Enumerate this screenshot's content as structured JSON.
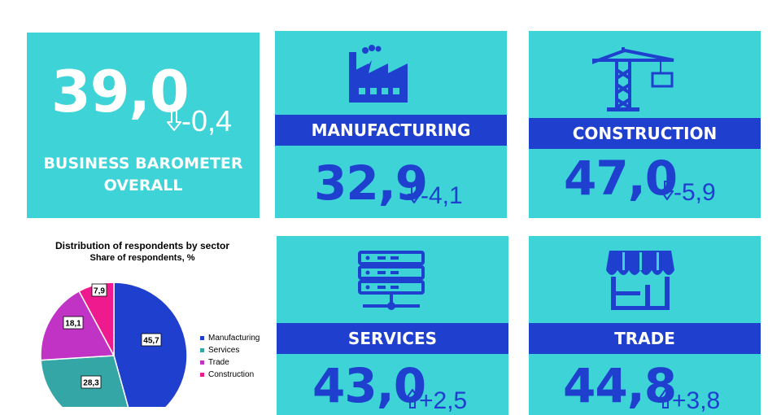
{
  "overall": {
    "value": "39,0",
    "delta": "-0,4",
    "label_line1": "BUSINESS BAROMETER",
    "label_line2": "OVERALL"
  },
  "sectors": {
    "manufacturing": {
      "label": "MANUFACTURING",
      "value": "32,9",
      "delta": "-4,1",
      "direction": "down",
      "icon": "factory-icon"
    },
    "construction": {
      "label": "CONSTRUCTION",
      "value": "47,0",
      "delta": "-5,9",
      "direction": "down",
      "icon": "crane-icon"
    },
    "services": {
      "label": "SERVICES",
      "value": "43,0",
      "delta": "+2,5",
      "direction": "up",
      "icon": "server-icon"
    },
    "trade": {
      "label": "TRADE",
      "value": "44,8",
      "delta": "+3,8",
      "direction": "up",
      "icon": "store-icon"
    }
  },
  "colors": {
    "card_bg": "#3dd3d7",
    "band": "#1f3fcf",
    "accent_text": "#1f3fcf",
    "white": "#ffffff"
  },
  "chart_data": {
    "type": "pie",
    "title": "Distribution of respondents by sector",
    "subtitle": "Share of respondents, %",
    "categories": [
      "Manufacturing",
      "Services",
      "Trade",
      "Construction"
    ],
    "values": [
      45.7,
      28.3,
      18.1,
      7.9
    ],
    "labels": [
      "45,7",
      "28,3",
      "18,1",
      "7,9"
    ],
    "colors": [
      "#1f3fcf",
      "#34a6a6",
      "#c033c4",
      "#ee1a8e"
    ],
    "legend_position": "right"
  }
}
